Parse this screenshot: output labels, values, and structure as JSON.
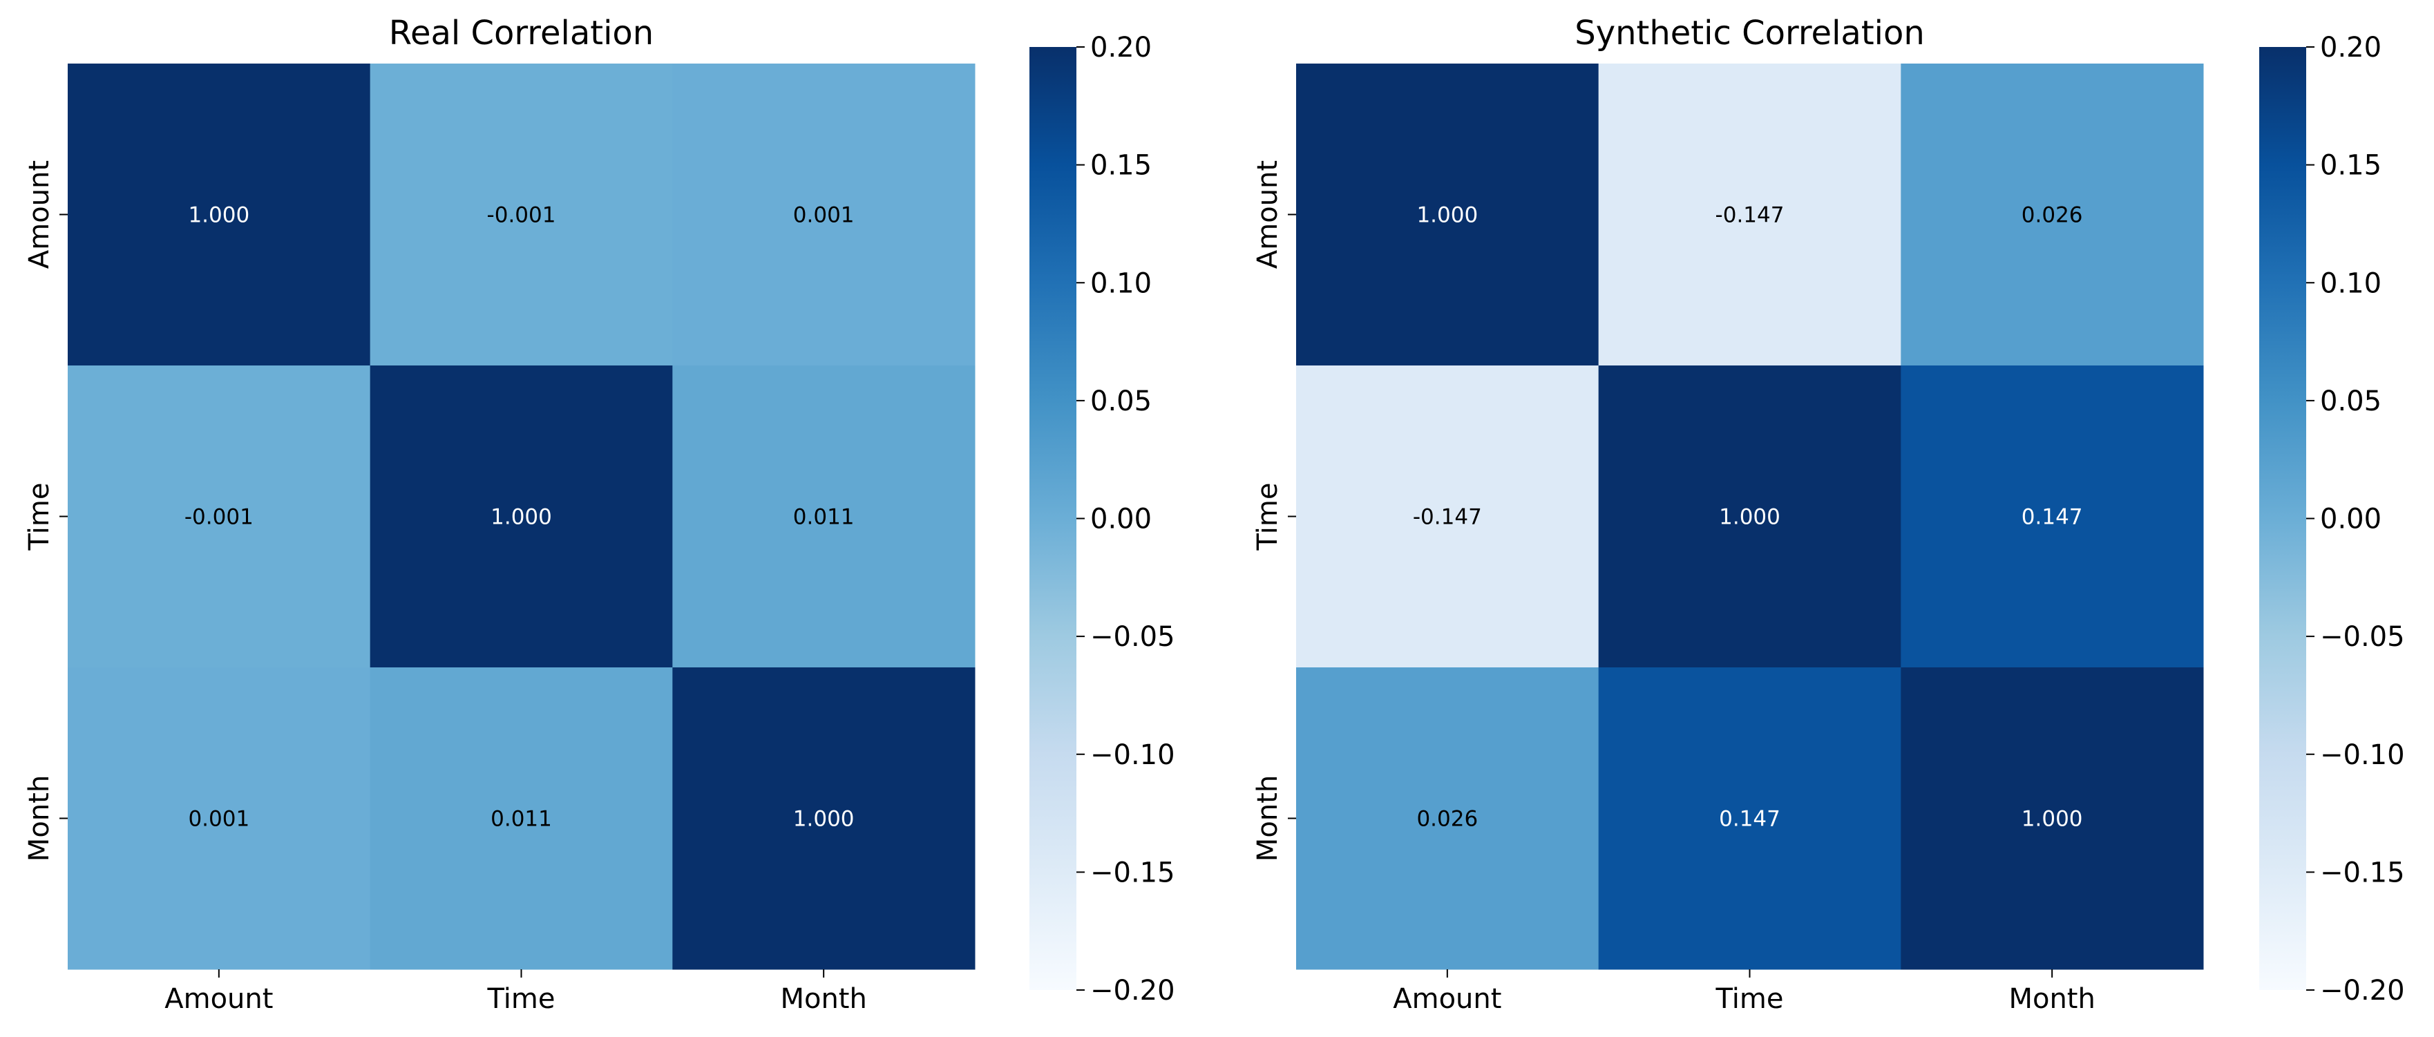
{
  "chart_data": [
    {
      "type": "heatmap",
      "title": "Real Correlation",
      "x_categories": [
        "Amount",
        "Time",
        "Month"
      ],
      "y_categories": [
        "Amount",
        "Time",
        "Month"
      ],
      "values": [
        [
          1.0,
          -0.001,
          0.001
        ],
        [
          -0.001,
          1.0,
          0.011
        ],
        [
          0.001,
          0.011,
          1.0
        ]
      ],
      "annotations": [
        [
          "1.000",
          "-0.001",
          "0.001"
        ],
        [
          "-0.001",
          "1.000",
          "0.011"
        ],
        [
          "0.001",
          "0.011",
          "1.000"
        ]
      ],
      "colormap": "Blues",
      "vmin": -0.2,
      "vmax": 0.2,
      "colorbar_ticks": [
        "0.20",
        "0.15",
        "0.10",
        "0.05",
        "0.00",
        "−0.05",
        "−0.10",
        "−0.15",
        "−0.20"
      ],
      "colorbar_tick_values": [
        0.2,
        0.15,
        0.1,
        0.05,
        0.0,
        -0.05,
        -0.1,
        -0.15,
        -0.2
      ],
      "xlabel": "",
      "ylabel": ""
    },
    {
      "type": "heatmap",
      "title": "Synthetic Correlation",
      "x_categories": [
        "Amount",
        "Time",
        "Month"
      ],
      "y_categories": [
        "Amount",
        "Time",
        "Month"
      ],
      "values": [
        [
          1.0,
          -0.147,
          0.026
        ],
        [
          -0.147,
          1.0,
          0.147
        ],
        [
          0.026,
          0.147,
          1.0
        ]
      ],
      "annotations": [
        [
          "1.000",
          "-0.147",
          "0.026"
        ],
        [
          "-0.147",
          "1.000",
          "0.147"
        ],
        [
          "0.026",
          "0.147",
          "1.000"
        ]
      ],
      "colormap": "Blues",
      "vmin": -0.2,
      "vmax": 0.2,
      "colorbar_ticks": [
        "0.20",
        "0.15",
        "0.10",
        "0.05",
        "0.00",
        "−0.05",
        "−0.10",
        "−0.15",
        "−0.20"
      ],
      "colorbar_tick_values": [
        0.2,
        0.15,
        0.1,
        0.05,
        0.0,
        -0.05,
        -0.1,
        -0.15,
        -0.2
      ],
      "xlabel": "",
      "ylabel": ""
    }
  ],
  "colors": {
    "blues_scale": [
      "#f7fbff",
      "#deebf7",
      "#c6dbef",
      "#9ecae1",
      "#6baed6",
      "#4292c6",
      "#2171b5",
      "#08519c",
      "#08306b"
    ],
    "axis_color": "#000000",
    "annotation_light": "#ffffff",
    "annotation_dark": "#000000"
  }
}
